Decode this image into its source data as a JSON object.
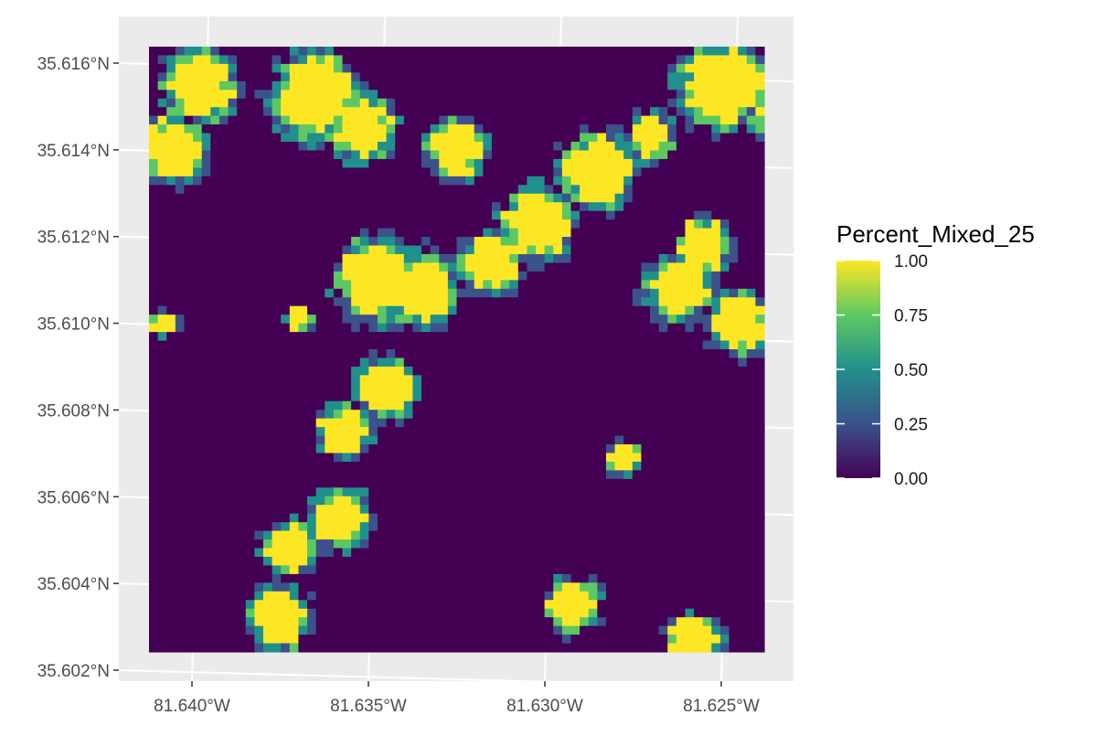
{
  "colors": {
    "panel_background": "#EBEBEB",
    "graticule": "#FFFFFF",
    "axis_text": "#4D4D4D",
    "viridis": [
      "#440154",
      "#3B528B",
      "#21908C",
      "#5DC863",
      "#FDE725"
    ]
  },
  "chart_data": {
    "type": "heatmap",
    "title": "",
    "xlabel": "",
    "ylabel": "",
    "fill_variable": "Percent_Mixed_25",
    "colormap": "viridis",
    "grid": true,
    "legend_position": "right",
    "legend": {
      "title": "Percent_Mixed_25",
      "ticks": [
        1.0,
        0.75,
        0.5,
        0.25,
        0.0
      ],
      "tick_labels": [
        "1.00",
        "0.75",
        "0.50",
        "0.25",
        "0.00"
      ],
      "range": [
        0,
        1
      ]
    },
    "x_ticks": [
      -81.64,
      -81.635,
      -81.63,
      -81.625
    ],
    "x_tick_labels": [
      "81.640°W",
      "81.635°W",
      "81.630°W",
      "81.625°W"
    ],
    "y_ticks": [
      35.616,
      35.614,
      35.612,
      35.61,
      35.608,
      35.606,
      35.604,
      35.602
    ],
    "y_tick_labels": [
      "35.616°N",
      "35.614°N",
      "35.612°N",
      "35.610°N",
      "35.608°N",
      "35.606°N",
      "35.604°N",
      "35.602°N"
    ],
    "xlim": [
      -81.6412,
      -81.6237
    ],
    "ylim": [
      35.6024,
      35.6163
    ],
    "raster": {
      "ncols": 70,
      "nrows": 70,
      "value_levels": [
        "0",
        "0.25",
        "0.5",
        "0.75",
        "1"
      ],
      "high_value_zones_lonlat": [
        {
          "value": 1.0,
          "lon": -81.6398,
          "lat": 35.6155,
          "r": 0.0011
        },
        {
          "value": 1.0,
          "lon": -81.6405,
          "lat": 35.614,
          "r": 0.001
        },
        {
          "value": 1.0,
          "lon": -81.6365,
          "lat": 35.6152,
          "r": 0.0013
        },
        {
          "value": 1.0,
          "lon": -81.6352,
          "lat": 35.6145,
          "r": 0.001
        },
        {
          "value": 1.0,
          "lon": -81.6325,
          "lat": 35.614,
          "r": 0.0009
        },
        {
          "value": 1.0,
          "lon": -81.6285,
          "lat": 35.6135,
          "r": 0.0011
        },
        {
          "value": 1.0,
          "lon": -81.6302,
          "lat": 35.6123,
          "r": 0.0011
        },
        {
          "value": 1.0,
          "lon": -81.6315,
          "lat": 35.6114,
          "r": 0.0009
        },
        {
          "value": 1.0,
          "lon": -81.627,
          "lat": 35.6143,
          "r": 0.0007
        },
        {
          "value": 1.0,
          "lon": -81.625,
          "lat": 35.6155,
          "r": 0.0013
        },
        {
          "value": 1.0,
          "lon": -81.6232,
          "lat": 35.615,
          "r": 0.001
        },
        {
          "value": 1.0,
          "lon": -81.6262,
          "lat": 35.6108,
          "r": 0.001
        },
        {
          "value": 1.0,
          "lon": -81.6245,
          "lat": 35.61,
          "r": 0.0009
        },
        {
          "value": 1.0,
          "lon": -81.6255,
          "lat": 35.6118,
          "r": 0.0008
        },
        {
          "value": 1.0,
          "lon": -81.6348,
          "lat": 35.611,
          "r": 0.0012
        },
        {
          "value": 1.0,
          "lon": -81.6335,
          "lat": 35.6108,
          "r": 0.0011
        },
        {
          "value": 1.0,
          "lon": -81.6345,
          "lat": 35.6085,
          "r": 0.0009
        },
        {
          "value": 1.0,
          "lon": -81.6357,
          "lat": 35.6075,
          "r": 0.0008
        },
        {
          "value": 1.0,
          "lon": -81.6358,
          "lat": 35.6055,
          "r": 0.0009
        },
        {
          "value": 1.0,
          "lon": -81.6372,
          "lat": 35.6048,
          "r": 0.0008
        },
        {
          "value": 1.0,
          "lon": -81.6375,
          "lat": 35.6032,
          "r": 0.0009
        },
        {
          "value": 1.0,
          "lon": -81.6292,
          "lat": 35.6035,
          "r": 0.0008
        },
        {
          "value": 1.0,
          "lon": -81.6258,
          "lat": 35.6027,
          "r": 0.0008
        },
        {
          "value": 1.0,
          "lon": -81.6278,
          "lat": 35.6069,
          "r": 0.0005
        },
        {
          "value": 1.0,
          "lon": -81.6408,
          "lat": 35.61,
          "r": 0.0004
        },
        {
          "value": 1.0,
          "lon": -81.637,
          "lat": 35.6101,
          "r": 0.0004
        }
      ]
    }
  }
}
